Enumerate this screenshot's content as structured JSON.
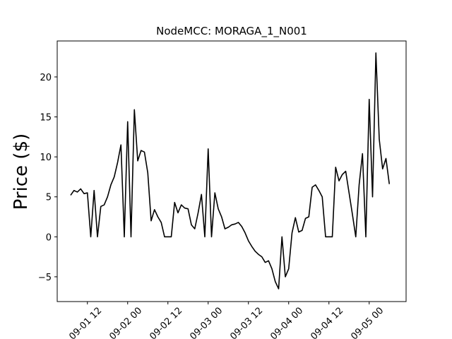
{
  "chart_data": {
    "type": "line",
    "title": "NodeMCC: MORAGA_1_N001",
    "y_label": "Price ($)",
    "x": [
      "09-01 07",
      "09-01 08",
      "09-01 09",
      "09-01 10",
      "09-01 11",
      "09-01 12",
      "09-01 13",
      "09-01 14",
      "09-01 15",
      "09-01 16",
      "09-01 17",
      "09-01 18",
      "09-01 19",
      "09-01 20",
      "09-01 21",
      "09-01 22",
      "09-01 23",
      "09-02 00",
      "09-02 01",
      "09-02 02",
      "09-02 03",
      "09-02 04",
      "09-02 05",
      "09-02 06",
      "09-02 07",
      "09-02 08",
      "09-02 09",
      "09-02 10",
      "09-02 11",
      "09-02 12",
      "09-02 13",
      "09-02 14",
      "09-02 15",
      "09-02 16",
      "09-02 17",
      "09-02 18",
      "09-02 19",
      "09-02 20",
      "09-02 21",
      "09-02 22",
      "09-02 23",
      "09-03 00",
      "09-03 01",
      "09-03 02",
      "09-03 03",
      "09-03 04",
      "09-03 05",
      "09-03 06",
      "09-03 07",
      "09-03 08",
      "09-03 09",
      "09-03 10",
      "09-03 11",
      "09-03 12",
      "09-03 13",
      "09-03 14",
      "09-03 15",
      "09-03 16",
      "09-03 17",
      "09-03 18",
      "09-03 19",
      "09-03 20",
      "09-03 21",
      "09-03 22",
      "09-03 23",
      "09-04 00",
      "09-04 01",
      "09-04 02",
      "09-04 03",
      "09-04 04",
      "09-04 05",
      "09-04 06",
      "09-04 07",
      "09-04 08",
      "09-04 09",
      "09-04 10",
      "09-04 11",
      "09-04 12",
      "09-04 13",
      "09-04 14",
      "09-04 15",
      "09-04 16",
      "09-04 17",
      "09-04 18",
      "09-04 19",
      "09-04 20",
      "09-04 21",
      "09-04 22",
      "09-04 23",
      "09-05 00",
      "09-05 01",
      "09-05 02",
      "09-05 03",
      "09-05 04",
      "09-05 05",
      "09-05 06"
    ],
    "series": [
      {
        "color": "#000000",
        "values": [
          5.2,
          5.8,
          5.6,
          6.0,
          5.4,
          5.5,
          0,
          5.8,
          0,
          3.8,
          4.0,
          5.0,
          6.5,
          7.5,
          9.3,
          11.5,
          0,
          14.4,
          0,
          15.9,
          9.5,
          10.8,
          10.6,
          8.0,
          2.0,
          3.4,
          2.5,
          1.8,
          0,
          0,
          0,
          4.3,
          3.0,
          4.0,
          3.6,
          3.5,
          1.5,
          1.0,
          3.0,
          5.3,
          0,
          11.0,
          0,
          5.5,
          3.5,
          2.5,
          1.0,
          1.2,
          1.5,
          1.6,
          1.8,
          1.3,
          0.5,
          -0.5,
          -1.2,
          -1.8,
          -2.2,
          -2.5,
          -3.2,
          -3.0,
          -4.0,
          -5.6,
          -6.5,
          0,
          -5.0,
          -4.0,
          0.5,
          2.4,
          0.6,
          0.8,
          2.3,
          2.5,
          6.2,
          6.5,
          5.8,
          5.0,
          0,
          0,
          0,
          8.7,
          7.0,
          7.8,
          8.2,
          5.5,
          2.8,
          0,
          6.5,
          10.4,
          0,
          17.2,
          5.0,
          23.0,
          12.2,
          8.5,
          9.8,
          6.6
        ]
      }
    ],
    "xlim": [
      "09-01 03",
      "09-05 11"
    ],
    "xticks": [
      "09-01 12",
      "09-02 00",
      "09-02 12",
      "09-03 00",
      "09-03 12",
      "09-04 00",
      "09-04 12",
      "09-05 00"
    ],
    "ylim": [
      -8.1,
      24.5
    ],
    "yticks": [
      {
        "value": -5,
        "label": "−5"
      },
      0,
      5,
      10,
      15,
      20
    ]
  }
}
